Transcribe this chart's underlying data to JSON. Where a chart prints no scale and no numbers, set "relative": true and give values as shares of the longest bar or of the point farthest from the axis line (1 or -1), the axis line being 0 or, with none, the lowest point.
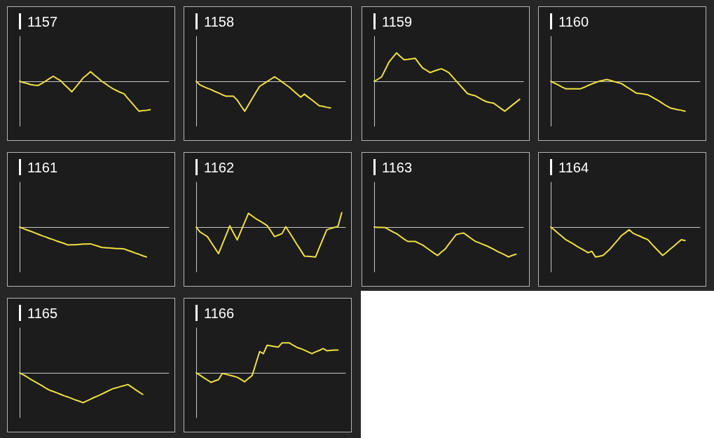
{
  "chart_data": [
    {
      "type": "line",
      "title": "1157",
      "color": "#f0e040",
      "relative": true,
      "categories": [
        null,
        null,
        null,
        null,
        null,
        null,
        null,
        null,
        null,
        null,
        null,
        null,
        null,
        null,
        null,
        null,
        null,
        null,
        null,
        null,
        null,
        null,
        null,
        null,
        null,
        null,
        null,
        null,
        null,
        null,
        null,
        null,
        null,
        null,
        null,
        null,
        null,
        null,
        null,
        null,
        null
      ],
      "values": [
        0,
        -0.04,
        -0.07,
        -0.11,
        -0.13,
        -0.14,
        -0.07,
        0.01,
        0.09,
        0.17,
        0.09,
        0.02,
        -0.11,
        -0.23,
        -0.35,
        -0.2,
        -0.05,
        0.11,
        0.21,
        0.32,
        0.21,
        0.11,
        0,
        -0.08,
        -0.17,
        -0.25,
        -0.31,
        -0.37,
        -0.42,
        -0.57,
        -0.71,
        -0.86,
        -1,
        -0.98,
        -0.97,
        -0.95,
        null,
        null,
        null,
        null,
        null
      ]
    },
    {
      "type": "line",
      "title": "1158",
      "color": "#f0e040",
      "relative": true,
      "categories": [
        null,
        null,
        null,
        null,
        null,
        null,
        null,
        null,
        null,
        null,
        null,
        null,
        null,
        null,
        null,
        null,
        null,
        null,
        null,
        null,
        null,
        null,
        null,
        null,
        null,
        null,
        null,
        null,
        null,
        null,
        null,
        null,
        null,
        null,
        null,
        null,
        null,
        null,
        null,
        null,
        null
      ],
      "values": [
        0,
        -0.12,
        -0.18,
        -0.23,
        -0.28,
        -0.34,
        -0.39,
        -0.45,
        -0.5,
        -0.5,
        -0.5,
        -0.63,
        -0.82,
        -1,
        -0.79,
        -0.58,
        -0.37,
        -0.17,
        -0.09,
        -0.01,
        0.07,
        0.15,
        0.07,
        -0.02,
        -0.11,
        -0.2,
        -0.31,
        -0.42,
        -0.53,
        -0.43,
        -0.53,
        -0.62,
        -0.72,
        -0.82,
        -0.84,
        -0.87,
        -0.89,
        null,
        null,
        null,
        null
      ]
    },
    {
      "type": "line",
      "title": "1159",
      "color": "#f0e040",
      "relative": true,
      "categories": [
        null,
        null,
        null,
        null,
        null,
        null,
        null,
        null,
        null,
        null,
        null,
        null,
        null,
        null,
        null,
        null,
        null,
        null,
        null,
        null,
        null,
        null,
        null,
        null,
        null,
        null,
        null,
        null,
        null,
        null,
        null,
        null,
        null,
        null,
        null,
        null,
        null,
        null,
        null,
        null,
        null
      ],
      "values": [
        0,
        0.07,
        0.15,
        0.4,
        0.65,
        0.8,
        0.95,
        0.83,
        0.72,
        0.73,
        0.75,
        0.77,
        0.6,
        0.44,
        0.37,
        0.29,
        0.34,
        0.38,
        0.42,
        0.36,
        0.29,
        0.15,
        0.01,
        -0.13,
        -0.27,
        -0.41,
        -0.45,
        -0.48,
        -0.55,
        -0.62,
        -0.68,
        -0.71,
        -0.73,
        -0.82,
        -0.91,
        -1,
        -0.9,
        -0.8,
        -0.7,
        -0.6,
        null
      ]
    },
    {
      "type": "line",
      "title": "1160",
      "color": "#f0e040",
      "relative": true,
      "categories": [
        null,
        null,
        null,
        null,
        null,
        null,
        null,
        null,
        null,
        null,
        null,
        null,
        null,
        null,
        null,
        null,
        null,
        null,
        null,
        null,
        null,
        null,
        null,
        null,
        null,
        null,
        null,
        null,
        null,
        null,
        null,
        null,
        null,
        null,
        null,
        null,
        null,
        null,
        null,
        null,
        null
      ],
      "values": [
        0,
        -0.06,
        -0.12,
        -0.19,
        -0.25,
        -0.25,
        -0.25,
        -0.25,
        -0.25,
        -0.2,
        -0.14,
        -0.09,
        -0.04,
        0,
        0.03,
        0.06,
        0.03,
        -0.01,
        -0.04,
        -0.08,
        -0.16,
        -0.24,
        -0.32,
        -0.4,
        -0.41,
        -0.43,
        -0.45,
        -0.52,
        -0.59,
        -0.66,
        -0.74,
        -0.82,
        -0.89,
        -0.92,
        -0.95,
        -0.97,
        -1,
        null,
        null,
        null,
        null
      ]
    },
    {
      "type": "line",
      "title": "1161",
      "color": "#f0e040",
      "relative": true,
      "categories": [
        null,
        null,
        null,
        null,
        null,
        null,
        null,
        null,
        null,
        null,
        null,
        null,
        null,
        null,
        null,
        null,
        null,
        null,
        null,
        null,
        null,
        null,
        null,
        null,
        null,
        null,
        null,
        null,
        null,
        null,
        null,
        null,
        null,
        null,
        null,
        null,
        null,
        null,
        null,
        null,
        null
      ],
      "values": [
        0,
        -0.05,
        -0.1,
        -0.14,
        -0.19,
        -0.24,
        -0.29,
        -0.33,
        -0.38,
        -0.42,
        -0.47,
        -0.51,
        -0.55,
        -0.6,
        -0.59,
        -0.59,
        -0.58,
        -0.57,
        -0.57,
        -0.56,
        -0.6,
        -0.64,
        -0.68,
        -0.69,
        -0.7,
        -0.71,
        -0.72,
        -0.72,
        -0.73,
        -0.78,
        -0.82,
        -0.87,
        -0.91,
        -0.96,
        -1,
        null,
        null,
        null,
        null,
        null,
        null
      ]
    },
    {
      "type": "line",
      "title": "1162",
      "color": "#f0e040",
      "relative": true,
      "categories": [
        null,
        null,
        null,
        null,
        null,
        null,
        null,
        null,
        null,
        null,
        null,
        null,
        null,
        null,
        null,
        null,
        null,
        null,
        null,
        null,
        null,
        null,
        null,
        null,
        null,
        null,
        null,
        null,
        null,
        null,
        null,
        null,
        null,
        null,
        null,
        null,
        null,
        null,
        null,
        null,
        null
      ],
      "values": [
        0,
        -0.16,
        -0.24,
        -0.32,
        -0.51,
        -0.7,
        -0.89,
        -0.58,
        -0.27,
        0.04,
        -0.2,
        -0.43,
        -0.13,
        0.16,
        0.46,
        0.37,
        0.28,
        0.21,
        0.13,
        0.05,
        -0.13,
        -0.32,
        -0.27,
        -0.22,
        0.01,
        -0.18,
        -0.38,
        -0.58,
        -0.77,
        -0.97,
        -0.98,
        -0.99,
        -1,
        -0.69,
        -0.39,
        -0.09,
        -0.05,
        -0.01,
        0.02,
        0.48,
        null
      ]
    },
    {
      "type": "line",
      "title": "1163",
      "color": "#f0e040",
      "relative": true,
      "categories": [
        null,
        null,
        null,
        null,
        null,
        null,
        null,
        null,
        null,
        null,
        null,
        null,
        null,
        null,
        null,
        null,
        null,
        null,
        null,
        null,
        null,
        null,
        null,
        null,
        null,
        null,
        null,
        null,
        null,
        null,
        null,
        null,
        null,
        null,
        null,
        null,
        null,
        null,
        null,
        null,
        null
      ],
      "values": [
        0,
        -0.01,
        -0.01,
        -0.02,
        -0.09,
        -0.16,
        -0.22,
        -0.31,
        -0.4,
        -0.48,
        -0.48,
        -0.48,
        -0.54,
        -0.6,
        -0.69,
        -0.78,
        -0.87,
        -0.95,
        -0.84,
        -0.74,
        -0.57,
        -0.41,
        -0.25,
        -0.22,
        -0.2,
        -0.29,
        -0.38,
        -0.47,
        -0.52,
        -0.57,
        -0.62,
        -0.68,
        -0.74,
        -0.81,
        -0.87,
        -0.93,
        -1,
        -0.95,
        -0.91,
        null,
        null
      ]
    },
    {
      "type": "line",
      "title": "1164",
      "color": "#f0e040",
      "relative": true,
      "categories": [
        null,
        null,
        null,
        null,
        null,
        null,
        null,
        null,
        null,
        null,
        null,
        null,
        null,
        null,
        null,
        null,
        null,
        null,
        null,
        null,
        null,
        null,
        null,
        null,
        null,
        null,
        null,
        null,
        null,
        null,
        null,
        null,
        null,
        null,
        null,
        null,
        null,
        null,
        null,
        null,
        null
      ],
      "values": [
        0,
        -0.1,
        -0.21,
        -0.31,
        -0.42,
        -0.49,
        -0.56,
        -0.64,
        -0.71,
        -0.78,
        -0.86,
        -0.81,
        -1,
        -0.98,
        -0.95,
        -0.84,
        -0.72,
        -0.57,
        -0.43,
        -0.28,
        -0.19,
        -0.09,
        -0.2,
        -0.26,
        -0.31,
        -0.37,
        -0.42,
        -0.56,
        -0.69,
        -0.82,
        -0.95,
        -0.85,
        -0.74,
        -0.64,
        -0.53,
        -0.42,
        -0.45,
        null,
        null,
        null,
        null
      ]
    },
    {
      "type": "line",
      "title": "1165",
      "color": "#f0e040",
      "relative": true,
      "categories": [
        null,
        null,
        null,
        null,
        null,
        null,
        null,
        null,
        null,
        null,
        null,
        null,
        null,
        null,
        null,
        null,
        null,
        null,
        null,
        null,
        null,
        null,
        null,
        null,
        null,
        null,
        null,
        null,
        null,
        null,
        null,
        null,
        null,
        null,
        null,
        null,
        null,
        null,
        null,
        null,
        null
      ],
      "values": [
        0,
        -0.07,
        -0.14,
        -0.22,
        -0.29,
        -0.36,
        -0.43,
        -0.51,
        -0.58,
        -0.62,
        -0.67,
        -0.72,
        -0.77,
        -0.81,
        -0.86,
        -0.91,
        -0.95,
        -1,
        -0.94,
        -0.88,
        -0.82,
        -0.77,
        -0.71,
        -0.65,
        -0.59,
        -0.53,
        -0.5,
        -0.46,
        -0.43,
        -0.39,
        -0.47,
        -0.56,
        -0.64,
        -0.72,
        null,
        null,
        null,
        null,
        null,
        null,
        null
      ]
    },
    {
      "type": "line",
      "title": "1166",
      "color": "#f0e040",
      "relative": true,
      "categories": [
        null,
        null,
        null,
        null,
        null,
        null,
        null,
        null,
        null,
        null,
        null,
        null,
        null,
        null,
        null,
        null,
        null,
        null,
        null,
        null,
        null,
        null,
        null,
        null,
        null,
        null,
        null,
        null,
        null,
        null,
        null,
        null,
        null,
        null,
        null,
        null,
        null,
        null,
        null,
        null,
        null
      ],
      "values": [
        0,
        -0.08,
        -0.16,
        -0.24,
        -0.32,
        -0.27,
        -0.23,
        -0.02,
        -0.05,
        -0.08,
        -0.11,
        -0.15,
        -0.22,
        -0.3,
        -0.19,
        -0.09,
        0.31,
        0.71,
        0.64,
        0.92,
        0.9,
        0.88,
        0.86,
        1,
        1,
        1,
        0.92,
        0.85,
        0.81,
        0.76,
        0.7,
        0.64,
        0.7,
        0.75,
        0.81,
        0.74,
        0.75,
        0.76,
        0.76,
        null,
        null
      ]
    }
  ]
}
